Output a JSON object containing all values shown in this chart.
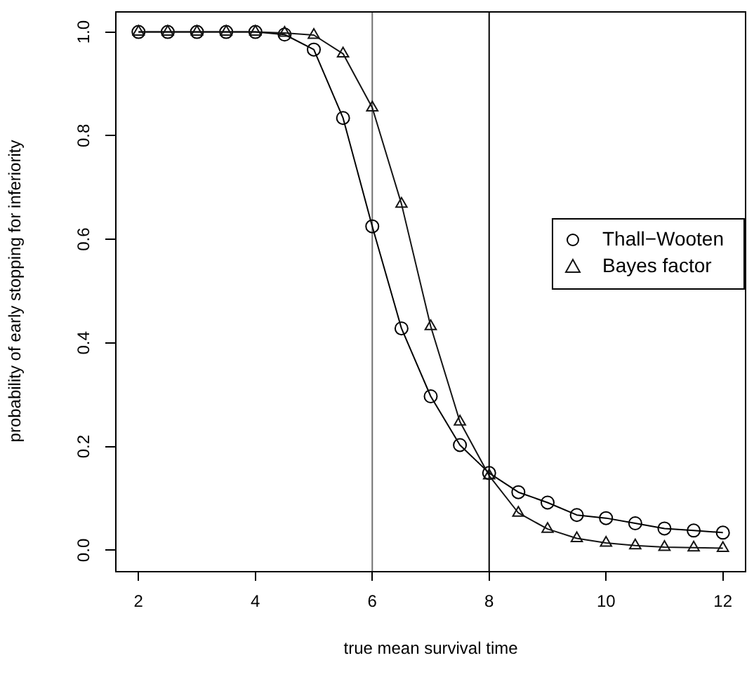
{
  "chart_data": {
    "type": "line",
    "xlabel": "true mean survival time",
    "ylabel": "probability of early stopping for inferiority",
    "x": [
      2,
      2.5,
      3,
      3.5,
      4,
      4.5,
      5,
      5.5,
      6,
      6.5,
      7,
      7.5,
      8,
      8.5,
      9,
      9.5,
      10,
      10.5,
      11,
      11.5,
      12
    ],
    "series": [
      {
        "name": "Thall−Wooten",
        "color": "#000000",
        "marker": "circle",
        "values": [
          1.0,
          1.0,
          1.0,
          1.0,
          1.0,
          0.995,
          0.966,
          0.834,
          0.625,
          0.428,
          0.297,
          0.203,
          0.149,
          0.112,
          0.092,
          0.068,
          0.062,
          0.052,
          0.042,
          0.038,
          0.034
        ]
      },
      {
        "name": "Bayes factor",
        "color": "#141414",
        "marker": "triangle",
        "values": [
          1.0,
          1.0,
          1.0,
          1.0,
          1.0,
          0.998,
          0.994,
          0.958,
          0.854,
          0.668,
          0.432,
          0.248,
          0.144,
          0.072,
          0.041,
          0.023,
          0.014,
          0.009,
          0.006,
          0.005,
          0.004
        ]
      }
    ],
    "xlim": [
      1.6,
      12.4
    ],
    "xticks": [
      2,
      4,
      6,
      8,
      10,
      12
    ],
    "ylim": [
      -0.04,
      1.04
    ],
    "yticks": [
      {
        "value": 0,
        "label": "0.0"
      },
      {
        "value": 0.2,
        "label": "0.2"
      },
      {
        "value": 0.4,
        "label": "0.4"
      },
      {
        "value": 0.6,
        "label": "0.6"
      },
      {
        "value": 0.8,
        "label": "0.8"
      },
      {
        "value": 1,
        "label": "1.0"
      }
    ],
    "ref_lines": [
      {
        "axis": "x",
        "value": 6,
        "color": "#707070"
      },
      {
        "axis": "x",
        "value": 8,
        "color": "#000000"
      }
    ],
    "grid": false,
    "legend": "right",
    "line_style": "solid"
  }
}
